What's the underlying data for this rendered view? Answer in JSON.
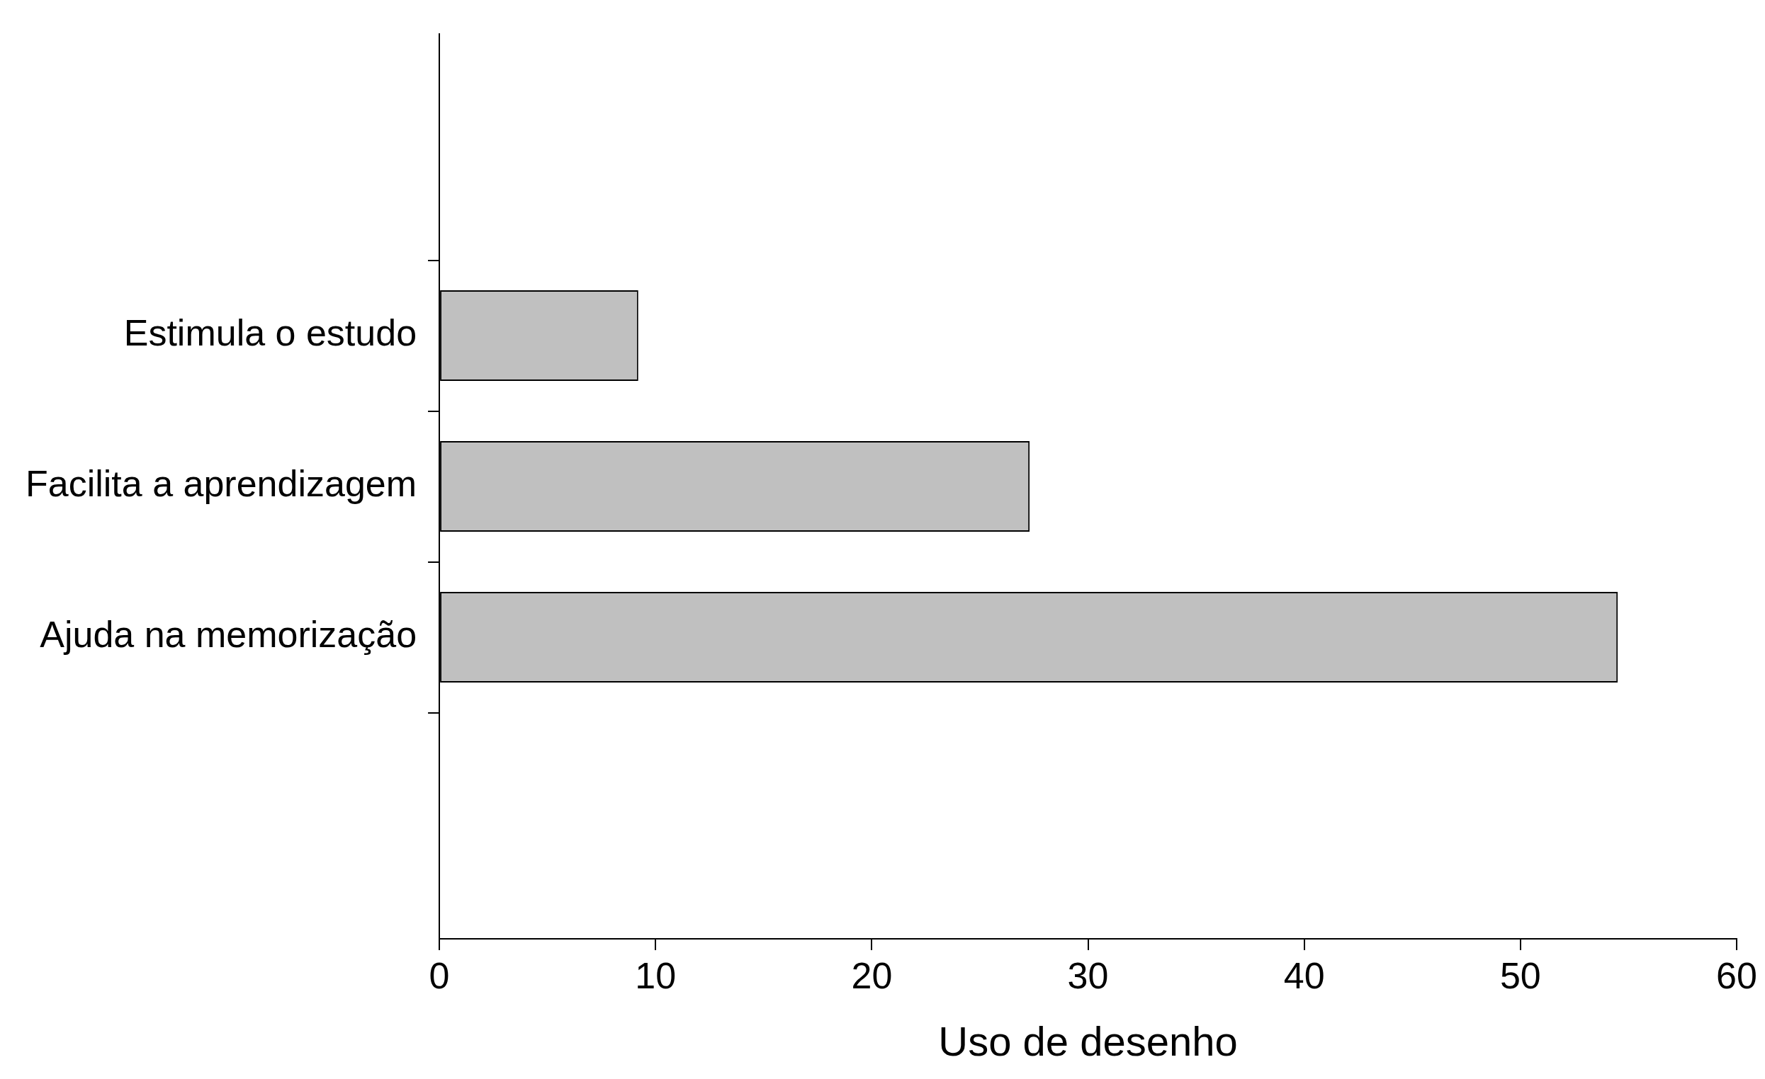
{
  "chart_data": {
    "type": "bar",
    "orientation": "horizontal",
    "xlabel": "Uso de desenho",
    "categories": [
      "Estimula o estudo",
      "Facilita a aprendizagem",
      "Ajuda na memorização"
    ],
    "values": [
      9.2,
      27.3,
      54.5
    ],
    "color": "#c0c0c0",
    "xlim": [
      0,
      60
    ],
    "xticks": [
      0,
      10,
      20,
      30,
      40,
      50,
      60
    ]
  }
}
